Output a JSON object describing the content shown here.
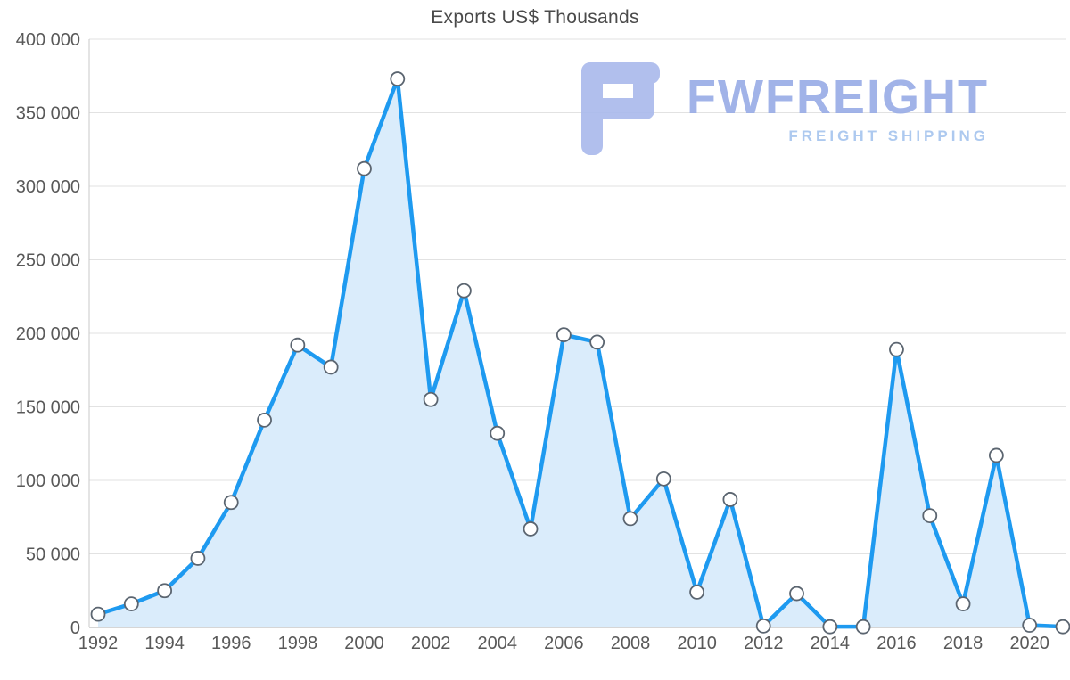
{
  "page": {
    "background": "#ffffff"
  },
  "chart_data": {
    "type": "area",
    "title": "Exports US$ Thousands",
    "xlabel": "",
    "ylabel": "",
    "legend": "none",
    "grid": true,
    "x": [
      1992,
      1993,
      1994,
      1995,
      1996,
      1997,
      1998,
      1999,
      2000,
      2001,
      2002,
      2003,
      2004,
      2005,
      2006,
      2007,
      2008,
      2009,
      2010,
      2011,
      2012,
      2013,
      2014,
      2015,
      2016,
      2017,
      2018,
      2019,
      2020,
      2021
    ],
    "series": [
      {
        "name": "Exports US$ Thousands",
        "values": [
          9000,
          16000,
          25000,
          47000,
          85000,
          141000,
          192000,
          177000,
          312000,
          373000,
          155000,
          229000,
          132000,
          67000,
          199000,
          194000,
          74000,
          101000,
          24000,
          87000,
          1000,
          23000,
          500,
          500,
          189000,
          76000,
          16000,
          117000,
          1500,
          500
        ]
      }
    ],
    "ylim": [
      0,
      400000
    ],
    "ytick_values": [
      0,
      50000,
      100000,
      150000,
      200000,
      250000,
      300000,
      350000,
      400000
    ],
    "ytick_labels": [
      "0",
      "50 000",
      "100 000",
      "150 000",
      "200 000",
      "250 000",
      "300 000",
      "350 000",
      "400 000"
    ],
    "xticks": [
      "1992",
      "1994",
      "1996",
      "1998",
      "2000",
      "2002",
      "2004",
      "2006",
      "2008",
      "2010",
      "2012",
      "2014",
      "2016",
      "2018",
      "2020"
    ],
    "style": {
      "line_color": "#1e9af0",
      "area_fill": "#daecfb",
      "marker_fill": "#ffffff",
      "marker_stroke": "#5b6570",
      "grid_color": "#e2e2e2",
      "axis_color": "#c9c9c9",
      "tick_text_color": "#595959",
      "title_color": "#4a4a4a"
    }
  },
  "logo": {
    "icon": "fwfreight-logo-icon",
    "title": "FWFREIGHT",
    "subtitle": "FREIGHT SHIPPING",
    "title_color": "#97abe6",
    "subtitle_color": "#a5c4ee",
    "icon_color": "#a9b9ec"
  }
}
